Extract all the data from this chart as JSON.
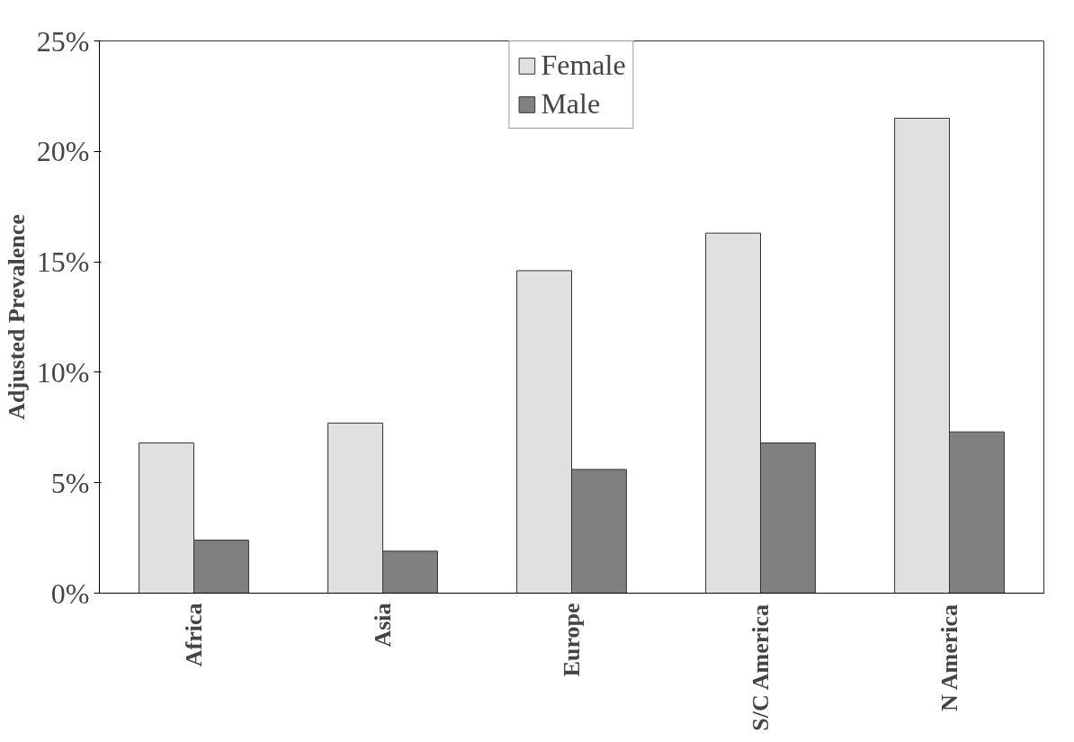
{
  "chart_data": {
    "type": "bar",
    "ylabel": "Adjusted Prevalence",
    "categories": [
      "Africa",
      "Asia",
      "Europe",
      "S/C America",
      "N America"
    ],
    "series": [
      {
        "name": "Female",
        "color": "#e0e0e0",
        "values": [
          6.8,
          7.7,
          14.6,
          16.3,
          21.5
        ]
      },
      {
        "name": "Male",
        "color": "#808080",
        "values": [
          2.4,
          1.9,
          5.6,
          6.8,
          7.3
        ]
      }
    ],
    "ylim": [
      0,
      25
    ],
    "yticks": [
      {
        "value": 0,
        "label": "0%"
      },
      {
        "value": 5,
        "label": "5%"
      },
      {
        "value": 10,
        "label": "10%"
      },
      {
        "value": 15,
        "label": "15%"
      },
      {
        "value": 20,
        "label": "20%"
      },
      {
        "value": 25,
        "label": "25%"
      }
    ],
    "grid": false,
    "legend": "top"
  }
}
